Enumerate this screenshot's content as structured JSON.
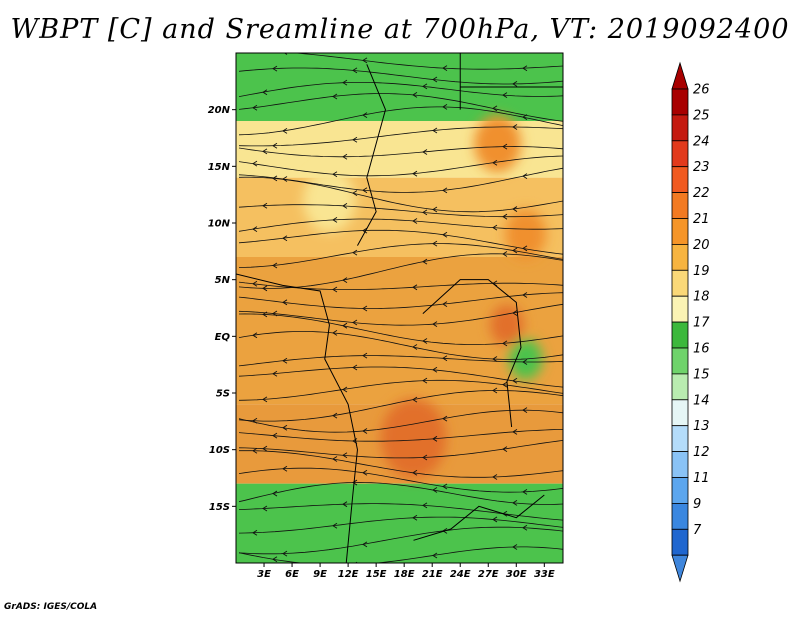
{
  "title": "WBPT [C] and Sreamline at 700hPa, VT: 2019092400",
  "credit": "GrADS: IGES/COLA",
  "map": {
    "lon_range": [
      0,
      35
    ],
    "lat_range": [
      -20,
      25
    ],
    "lon_ticks": [
      {
        "value": 3,
        "label": "3E"
      },
      {
        "value": 6,
        "label": "6E"
      },
      {
        "value": 9,
        "label": "9E"
      },
      {
        "value": 12,
        "label": "12E"
      },
      {
        "value": 15,
        "label": "15E"
      },
      {
        "value": 18,
        "label": "18E"
      },
      {
        "value": 21,
        "label": "21E"
      },
      {
        "value": 24,
        "label": "24E"
      },
      {
        "value": 27,
        "label": "27E"
      },
      {
        "value": 30,
        "label": "30E"
      },
      {
        "value": 33,
        "label": "33E"
      }
    ],
    "lat_ticks": [
      {
        "value": 20,
        "label": "20N"
      },
      {
        "value": 15,
        "label": "15N"
      },
      {
        "value": 10,
        "label": "10N"
      },
      {
        "value": 5,
        "label": "5N"
      },
      {
        "value": 0,
        "label": "EQ"
      },
      {
        "value": -5,
        "label": "5S"
      },
      {
        "value": -10,
        "label": "10S"
      },
      {
        "value": -15,
        "label": "15S"
      }
    ],
    "field_bands": [
      {
        "lat_from": 25,
        "lat_to": 19,
        "color": "#4cc34c"
      },
      {
        "lat_from": 19,
        "lat_to": 14,
        "color": "#f9e592"
      },
      {
        "lat_from": 14,
        "lat_to": 7,
        "color": "#f5c060"
      },
      {
        "lat_from": 7,
        "lat_to": -6,
        "color": "#eba23f"
      },
      {
        "lat_from": -6,
        "lat_to": -13,
        "color": "#e89a3c"
      },
      {
        "lat_from": -13,
        "lat_to": -20,
        "color": "#4cc34c"
      }
    ],
    "field_patches": [
      {
        "lon": 19,
        "lat": -9,
        "r": 3.5,
        "color": "#e2702a"
      },
      {
        "lon": 29,
        "lat": 1,
        "r": 1.8,
        "color": "#e2702a"
      },
      {
        "lon": 28,
        "lat": 17,
        "r": 2.5,
        "color": "#f0902e"
      },
      {
        "lon": 31,
        "lat": 9,
        "r": 2.2,
        "color": "#f0902e"
      },
      {
        "lon": 10,
        "lat": 12,
        "r": 2.8,
        "color": "#f9e592"
      },
      {
        "lon": 31,
        "lat": -2,
        "r": 1.8,
        "color": "#4cc34c"
      }
    ]
  },
  "colorbar": {
    "levels": [
      {
        "label": "26",
        "color": "#a80000"
      },
      {
        "label": "25",
        "color": "#c41a10"
      },
      {
        "label": "24",
        "color": "#e23a1c"
      },
      {
        "label": "23",
        "color": "#f05a20"
      },
      {
        "label": "22",
        "color": "#f27a22"
      },
      {
        "label": "21",
        "color": "#f59528"
      },
      {
        "label": "20",
        "color": "#f7b440"
      },
      {
        "label": "19",
        "color": "#fad878"
      },
      {
        "label": "18",
        "color": "#fbf3b4"
      },
      {
        "label": "17",
        "color": "#3cb83c"
      },
      {
        "label": "16",
        "color": "#6fd36b"
      },
      {
        "label": "15",
        "color": "#b9ecb0"
      },
      {
        "label": "14",
        "color": "#e6f6f6"
      },
      {
        "label": "13",
        "color": "#b4dcfa"
      },
      {
        "label": "12",
        "color": "#8ac3f6"
      },
      {
        "label": "11",
        "color": "#5ca6ee"
      },
      {
        "label": "9",
        "color": "#3a87e0"
      },
      {
        "label": "7",
        "color": "#1f66cf"
      }
    ],
    "bottom_color": "#3f86dc"
  }
}
